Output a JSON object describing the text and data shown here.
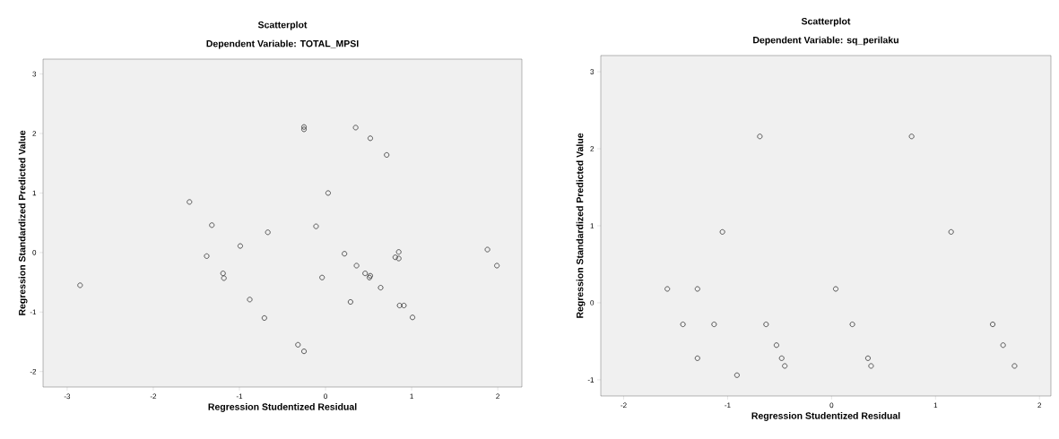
{
  "chart_data": [
    {
      "type": "scatter",
      "title": "Scatterplot",
      "subtitle": "Dependent Variable: TOTAL_MPSI",
      "xlabel": "Regression Studentized Residual",
      "ylabel": "Regression Standardized Predicted Value",
      "marker": "circle",
      "color": "#333333",
      "grid": false,
      "xlim": [
        -3.28,
        2.28
      ],
      "ylim": [
        -2.26,
        3.25
      ],
      "xticks": [
        -3,
        -2,
        -1,
        0,
        1,
        2
      ],
      "yticks": [
        -2,
        -1,
        0,
        1,
        2,
        3
      ],
      "x": [
        -2.85,
        -1.58,
        -1.32,
        -1.38,
        -1.19,
        -1.18,
        -0.99,
        -0.88,
        -0.71,
        -0.67,
        -0.32,
        -0.25,
        -0.25,
        -0.25,
        -0.11,
        -0.04,
        0.03,
        0.22,
        0.29,
        0.35,
        0.36,
        0.46,
        0.52,
        0.51,
        0.52,
        0.64,
        0.71,
        0.81,
        0.85,
        0.85,
        0.86,
        0.91,
        1.01,
        1.88,
        1.99
      ],
      "values": [
        -0.55,
        0.85,
        0.46,
        -0.06,
        -0.35,
        -0.43,
        0.11,
        -0.79,
        -1.1,
        0.34,
        -1.55,
        -1.66,
        2.11,
        2.07,
        0.44,
        -0.42,
        1.0,
        -0.02,
        -0.83,
        2.1,
        -0.22,
        -0.35,
        -0.39,
        -0.42,
        1.92,
        -0.59,
        1.64,
        -0.08,
        0.01,
        -0.1,
        -0.89,
        -0.89,
        -1.09,
        0.05,
        -0.22
      ]
    },
    {
      "type": "scatter",
      "title": "Scatterplot",
      "subtitle": "Dependent Variable: sq_perilaku",
      "xlabel": "Regression Studentized Residual",
      "ylabel": "Regression Standardized Predicted Value",
      "marker": "circle",
      "color": "#333333",
      "grid": false,
      "xlim": [
        -2.22,
        2.11
      ],
      "ylim": [
        -1.21,
        3.21
      ],
      "xticks": [
        -2,
        -1,
        0,
        1,
        2
      ],
      "yticks": [
        -1,
        0,
        1,
        2,
        3
      ],
      "x": [
        -1.58,
        -1.29,
        -1.43,
        -1.13,
        -1.29,
        -1.05,
        -0.91,
        -0.69,
        -0.63,
        -0.53,
        -0.48,
        -0.45,
        0.04,
        0.2,
        0.35,
        0.38,
        0.77,
        1.15,
        1.55,
        1.65,
        1.76
      ],
      "values": [
        0.18,
        0.18,
        -0.28,
        -0.28,
        -0.72,
        0.92,
        -0.94,
        2.16,
        -0.28,
        -0.55,
        -0.72,
        -0.82,
        0.18,
        -0.28,
        -0.72,
        -0.82,
        2.16,
        0.92,
        -0.28,
        -0.55,
        -0.82
      ]
    }
  ]
}
